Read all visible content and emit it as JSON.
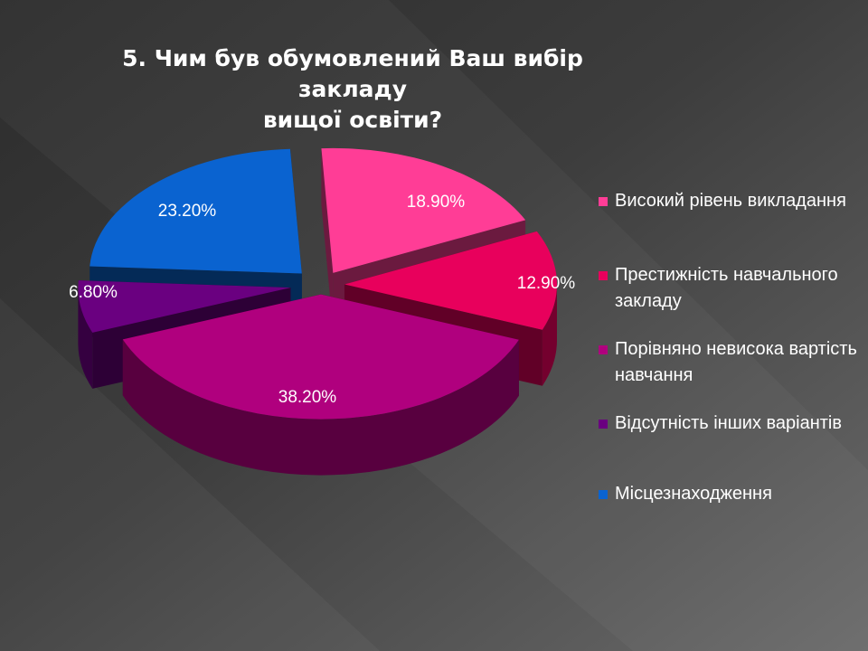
{
  "slide": {
    "title_lines": [
      "5. Чим був обумовлений Ваш вибір закладу",
      "вищої освіти?"
    ]
  },
  "chart_data": {
    "type": "pie",
    "title": "5. Чим був обумовлений Ваш вибір закладу вищої освіти?",
    "categories": [
      "Високий рівень викладання",
      "Престижність навчального закладу",
      "Порівняно невисока вартість навчання",
      "Відсутність інших варіантів",
      "Місцезнаходження"
    ],
    "values": [
      18.9,
      12.9,
      38.2,
      6.8,
      23.2
    ],
    "data_labels": [
      "18.90%",
      "12.90%",
      "38.20%",
      "6.80%",
      "23.20%"
    ],
    "colors": [
      "#ff3d96",
      "#e8005c",
      "#b0007e",
      "#6a0080",
      "#0a63d0"
    ],
    "legend_position": "right",
    "exploded": true,
    "three_d": true
  }
}
